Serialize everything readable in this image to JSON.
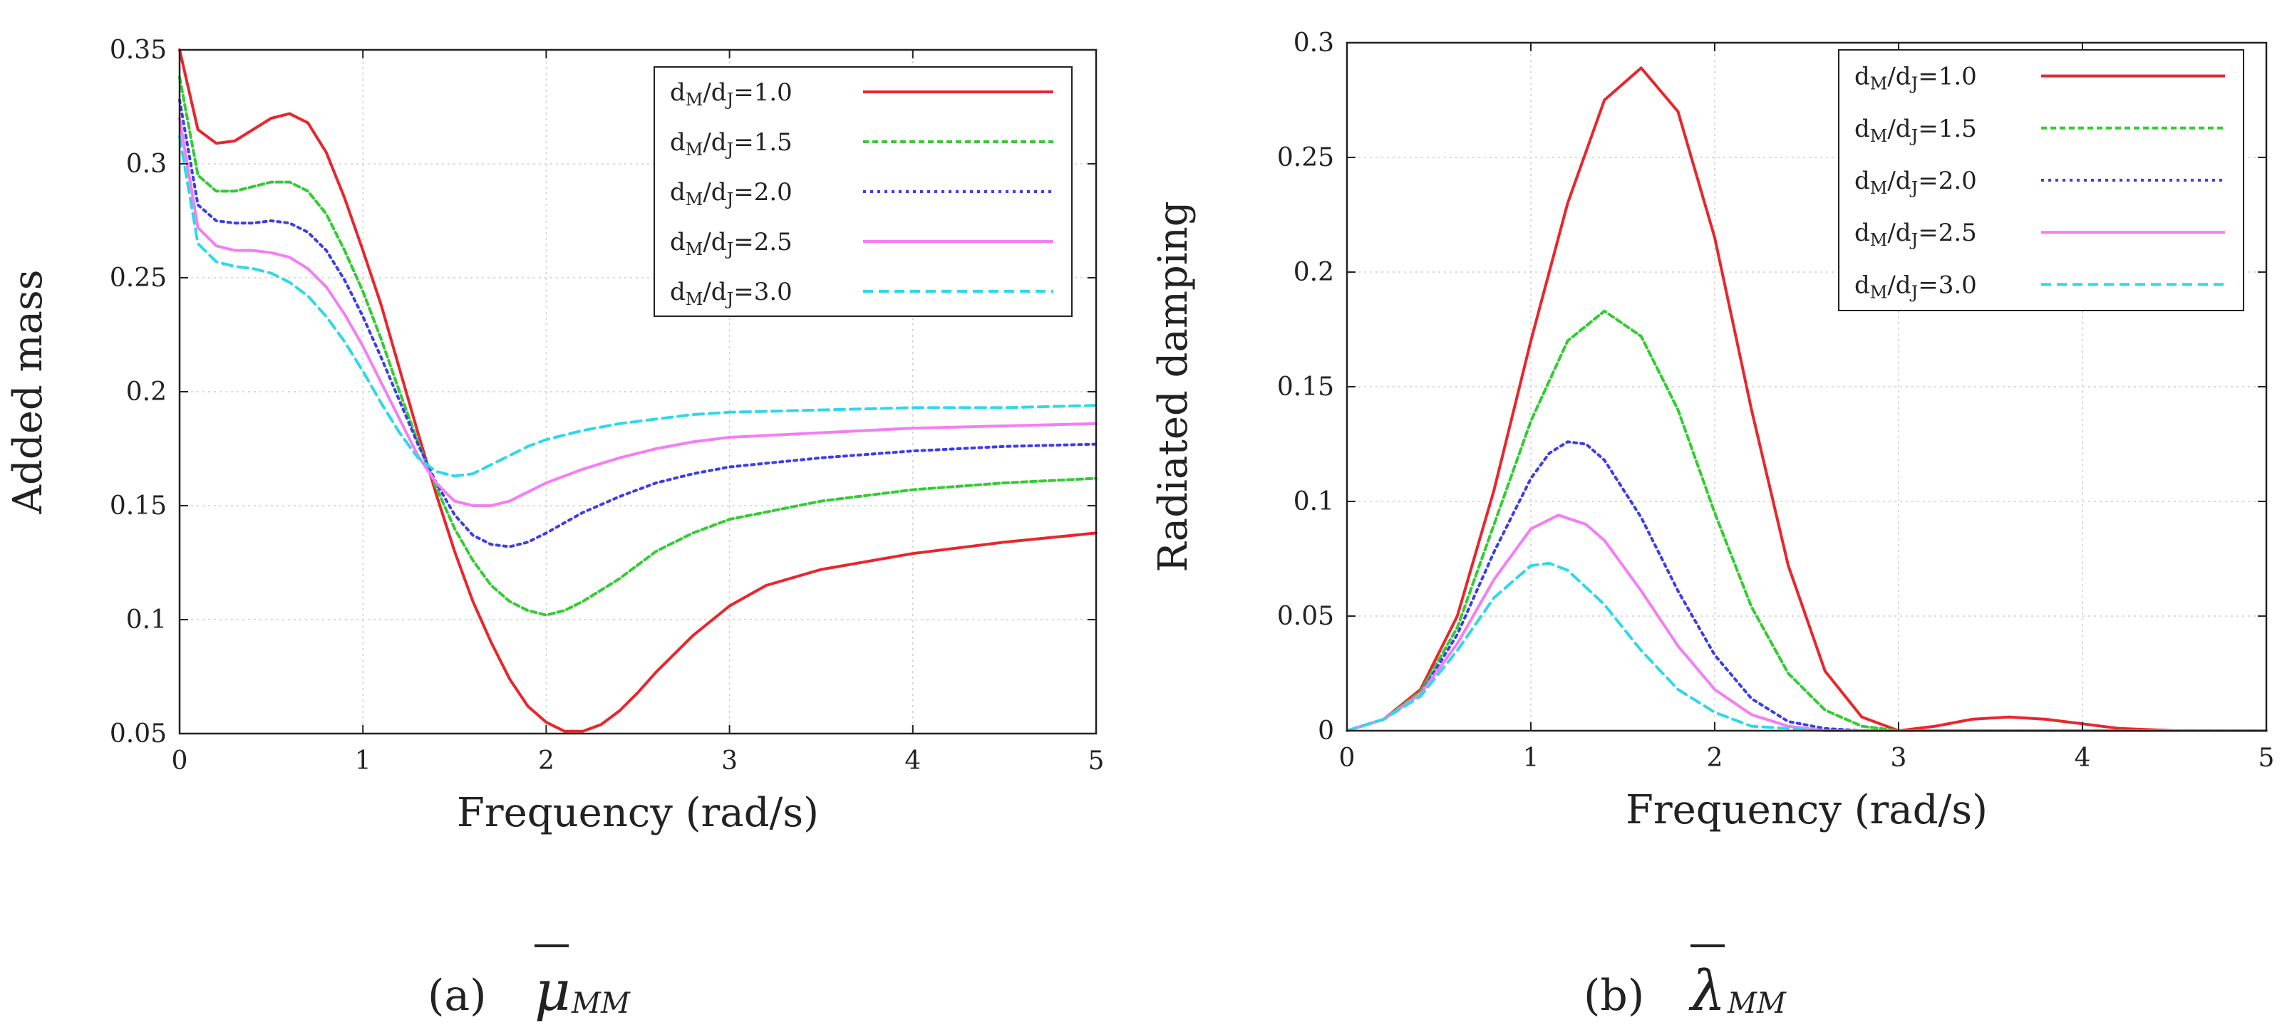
{
  "chart_data": [
    {
      "type": "line",
      "panel": "a",
      "xlabel": "Frequency (rad/s)",
      "ylabel": "Added mass",
      "xlim": [
        0,
        5
      ],
      "ylim": [
        0.05,
        0.35
      ],
      "xticks": [
        "0",
        "1",
        "2",
        "3",
        "4",
        "5"
      ],
      "yticks": [
        "0.05",
        "0.1",
        "0.15",
        "0.2",
        "0.25",
        "0.3",
        "0.35"
      ],
      "grid": true,
      "legend_position": "top-right",
      "caption": {
        "label": "(a)",
        "symbol": "μ",
        "subscript": "MM"
      },
      "series": [
        {
          "name": "dM/dJ=1.0",
          "color": "#e8262c",
          "dash": "solid",
          "x": [
            0,
            0.1,
            0.2,
            0.3,
            0.4,
            0.5,
            0.6,
            0.7,
            0.8,
            0.9,
            1.0,
            1.1,
            1.2,
            1.3,
            1.4,
            1.5,
            1.6,
            1.7,
            1.8,
            1.9,
            2.0,
            2.1,
            2.2,
            2.3,
            2.4,
            2.5,
            2.6,
            2.8,
            3.0,
            3.2,
            3.5,
            4.0,
            4.5,
            5.0
          ],
          "y": [
            0.35,
            0.315,
            0.309,
            0.31,
            0.315,
            0.32,
            0.322,
            0.318,
            0.305,
            0.285,
            0.262,
            0.238,
            0.21,
            0.182,
            0.155,
            0.13,
            0.108,
            0.09,
            0.074,
            0.062,
            0.055,
            0.051,
            0.051,
            0.054,
            0.06,
            0.068,
            0.077,
            0.093,
            0.106,
            0.115,
            0.122,
            0.129,
            0.134,
            0.138
          ]
        },
        {
          "name": "dM/dJ=1.5",
          "color": "#33cc33",
          "dash": "short",
          "x": [
            0,
            0.1,
            0.2,
            0.3,
            0.4,
            0.5,
            0.6,
            0.7,
            0.8,
            0.9,
            1.0,
            1.1,
            1.2,
            1.3,
            1.4,
            1.5,
            1.6,
            1.7,
            1.8,
            1.9,
            2.0,
            2.1,
            2.2,
            2.4,
            2.6,
            2.8,
            3.0,
            3.5,
            4.0,
            4.5,
            5.0
          ],
          "y": [
            0.338,
            0.295,
            0.288,
            0.288,
            0.29,
            0.292,
            0.292,
            0.288,
            0.278,
            0.262,
            0.244,
            0.223,
            0.2,
            0.178,
            0.158,
            0.14,
            0.126,
            0.115,
            0.108,
            0.104,
            0.102,
            0.104,
            0.108,
            0.118,
            0.13,
            0.138,
            0.144,
            0.152,
            0.157,
            0.16,
            0.162
          ]
        },
        {
          "name": "dM/dJ=2.0",
          "color": "#3d3dea",
          "dash": "dot",
          "x": [
            0,
            0.1,
            0.2,
            0.3,
            0.4,
            0.5,
            0.6,
            0.7,
            0.8,
            0.9,
            1.0,
            1.1,
            1.2,
            1.3,
            1.4,
            1.5,
            1.6,
            1.7,
            1.8,
            1.9,
            2.0,
            2.2,
            2.4,
            2.6,
            2.8,
            3.0,
            3.5,
            4.0,
            4.5,
            5.0
          ],
          "y": [
            0.328,
            0.282,
            0.275,
            0.274,
            0.274,
            0.275,
            0.274,
            0.27,
            0.262,
            0.249,
            0.233,
            0.215,
            0.196,
            0.177,
            0.16,
            0.146,
            0.137,
            0.133,
            0.132,
            0.134,
            0.138,
            0.147,
            0.154,
            0.16,
            0.164,
            0.167,
            0.171,
            0.174,
            0.176,
            0.177
          ]
        },
        {
          "name": "dM/dJ=2.5",
          "color": "#f47ef4",
          "dash": "solid",
          "x": [
            0,
            0.1,
            0.2,
            0.3,
            0.4,
            0.5,
            0.6,
            0.7,
            0.8,
            0.9,
            1.0,
            1.1,
            1.2,
            1.3,
            1.4,
            1.5,
            1.6,
            1.7,
            1.8,
            1.9,
            2.0,
            2.2,
            2.4,
            2.6,
            2.8,
            3.0,
            3.5,
            4.0,
            4.5,
            5.0
          ],
          "y": [
            0.32,
            0.272,
            0.264,
            0.262,
            0.262,
            0.261,
            0.259,
            0.254,
            0.246,
            0.234,
            0.22,
            0.204,
            0.188,
            0.172,
            0.16,
            0.152,
            0.15,
            0.15,
            0.152,
            0.156,
            0.16,
            0.166,
            0.171,
            0.175,
            0.178,
            0.18,
            0.182,
            0.184,
            0.185,
            0.186
          ]
        },
        {
          "name": "dM/dJ=3.0",
          "color": "#2fd8e8",
          "dash": "dash",
          "x": [
            0,
            0.1,
            0.2,
            0.3,
            0.4,
            0.5,
            0.6,
            0.7,
            0.8,
            0.9,
            1.0,
            1.1,
            1.2,
            1.3,
            1.4,
            1.5,
            1.6,
            1.7,
            1.8,
            1.9,
            2.0,
            2.2,
            2.4,
            2.6,
            2.8,
            3.0,
            3.5,
            4.0,
            4.5,
            5.0
          ],
          "y": [
            0.312,
            0.265,
            0.257,
            0.255,
            0.254,
            0.252,
            0.248,
            0.242,
            0.233,
            0.222,
            0.209,
            0.195,
            0.182,
            0.171,
            0.165,
            0.163,
            0.164,
            0.168,
            0.172,
            0.176,
            0.179,
            0.183,
            0.186,
            0.188,
            0.19,
            0.191,
            0.192,
            0.193,
            0.193,
            0.194
          ]
        }
      ]
    },
    {
      "type": "line",
      "panel": "b",
      "xlabel": "Frequency (rad/s)",
      "ylabel": "Radiated damping",
      "xlim": [
        0,
        5
      ],
      "ylim": [
        0,
        0.3
      ],
      "xticks": [
        "0",
        "1",
        "2",
        "3",
        "4",
        "5"
      ],
      "yticks": [
        "0",
        "0.05",
        "0.1",
        "0.15",
        "0.2",
        "0.25",
        "0.3"
      ],
      "grid": true,
      "legend_position": "top-right",
      "caption": {
        "label": "(b)",
        "symbol": "λ",
        "subscript": "MM"
      },
      "series": [
        {
          "name": "dM/dJ=1.0",
          "color": "#e8262c",
          "dash": "solid",
          "x": [
            0,
            0.2,
            0.4,
            0.6,
            0.8,
            1.0,
            1.2,
            1.4,
            1.6,
            1.8,
            2.0,
            2.2,
            2.4,
            2.6,
            2.8,
            3.0,
            3.2,
            3.4,
            3.6,
            3.8,
            4.0,
            4.2,
            4.5,
            5.0
          ],
          "y": [
            0,
            0.005,
            0.018,
            0.05,
            0.105,
            0.17,
            0.23,
            0.275,
            0.289,
            0.27,
            0.215,
            0.14,
            0.072,
            0.026,
            0.006,
            0,
            0.002,
            0.005,
            0.006,
            0.005,
            0.003,
            0.001,
            0,
            0
          ]
        },
        {
          "name": "dM/dJ=1.5",
          "color": "#33cc33",
          "dash": "short",
          "x": [
            0,
            0.2,
            0.4,
            0.6,
            0.8,
            1.0,
            1.2,
            1.4,
            1.6,
            1.8,
            2.0,
            2.2,
            2.4,
            2.6,
            2.8,
            3.0,
            3.5,
            4.0,
            5.0
          ],
          "y": [
            0,
            0.005,
            0.017,
            0.045,
            0.09,
            0.135,
            0.17,
            0.183,
            0.172,
            0.14,
            0.095,
            0.054,
            0.025,
            0.009,
            0.002,
            0,
            0,
            0,
            0
          ]
        },
        {
          "name": "dM/dJ=2.0",
          "color": "#3d3dea",
          "dash": "dot",
          "x": [
            0,
            0.2,
            0.4,
            0.6,
            0.8,
            1.0,
            1.1,
            1.2,
            1.3,
            1.4,
            1.6,
            1.8,
            2.0,
            2.2,
            2.4,
            2.6,
            2.8,
            3.0,
            5.0
          ],
          "y": [
            0,
            0.005,
            0.016,
            0.042,
            0.078,
            0.11,
            0.121,
            0.126,
            0.125,
            0.118,
            0.093,
            0.061,
            0.033,
            0.014,
            0.004,
            0.001,
            0,
            0,
            0
          ]
        },
        {
          "name": "dM/dJ=2.5",
          "color": "#f47ef4",
          "dash": "solid",
          "x": [
            0,
            0.2,
            0.4,
            0.6,
            0.8,
            1.0,
            1.15,
            1.3,
            1.4,
            1.6,
            1.8,
            2.0,
            2.2,
            2.4,
            2.6,
            2.8,
            5.0
          ],
          "y": [
            0,
            0.005,
            0.016,
            0.038,
            0.066,
            0.088,
            0.094,
            0.09,
            0.083,
            0.061,
            0.037,
            0.018,
            0.007,
            0.002,
            0,
            0,
            0
          ]
        },
        {
          "name": "dM/dJ=3.0",
          "color": "#2fd8e8",
          "dash": "dash",
          "x": [
            0,
            0.2,
            0.4,
            0.6,
            0.8,
            1.0,
            1.1,
            1.2,
            1.4,
            1.6,
            1.8,
            2.0,
            2.2,
            2.4,
            2.6,
            5.0
          ],
          "y": [
            0,
            0.005,
            0.015,
            0.035,
            0.058,
            0.072,
            0.073,
            0.07,
            0.055,
            0.035,
            0.018,
            0.008,
            0.002,
            0.001,
            0,
            0
          ]
        }
      ]
    }
  ]
}
